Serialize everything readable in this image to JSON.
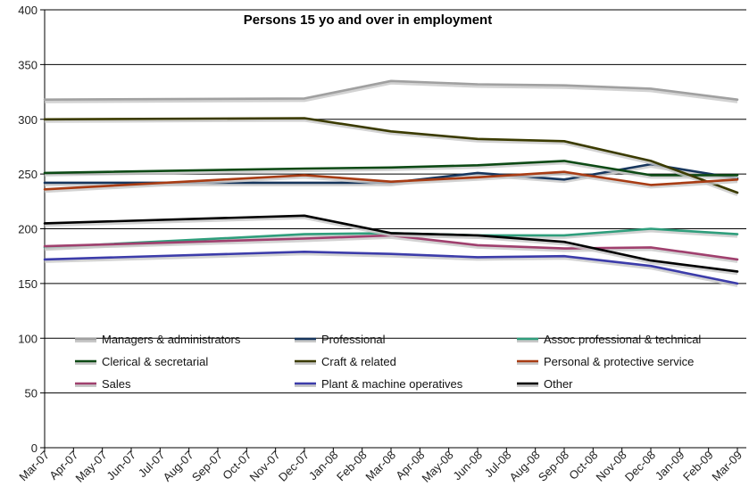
{
  "chart_data": {
    "type": "line",
    "title": "Persons 15 yo and over in employment",
    "xlabel": "",
    "ylabel": "",
    "ylim": [
      0,
      400
    ],
    "yticks": [
      0,
      50,
      100,
      150,
      200,
      250,
      300,
      350,
      400
    ],
    "grid": true,
    "legend_position": "lower-middle",
    "categories": [
      "Mar-07",
      "Apr-07",
      "May-07",
      "Jun-07",
      "Jul-07",
      "Aug-07",
      "Sep-07",
      "Oct-07",
      "Nov-07",
      "Dec-07",
      "Jan-08",
      "Feb-08",
      "Mar-08",
      "Apr-08",
      "May-08",
      "Jun-08",
      "Jul-08",
      "Aug-08",
      "Sep-08",
      "Oct-08",
      "Nov-08",
      "Dec-08",
      "Jan-09",
      "Feb-09",
      "Mar-09"
    ],
    "x": [
      "Mar-07",
      "Dec-07",
      "Mar-08",
      "Jun-08",
      "Sep-08",
      "Dec-08",
      "Mar-09"
    ],
    "series": [
      {
        "name": "Managers & administrators",
        "color": "#a0a0a0",
        "values": [
          318,
          319,
          335,
          332,
          331,
          328,
          318
        ]
      },
      {
        "name": "Professional",
        "color": "#17365d",
        "values": [
          242,
          242,
          242,
          251,
          245,
          259,
          246
        ]
      },
      {
        "name": "Assoc professional & technical",
        "color": "#2f9e7c",
        "values": [
          183,
          195,
          196,
          194,
          194,
          200,
          195
        ]
      },
      {
        "name": "Clerical & secretarial",
        "color": "#0d4a15",
        "values": [
          251,
          255,
          256,
          258,
          262,
          249,
          249
        ]
      },
      {
        "name": "Craft & related",
        "color": "#3b3b00",
        "values": [
          300,
          301,
          289,
          282,
          280,
          262,
          233
        ]
      },
      {
        "name": "Personal & protective service",
        "color": "#a83c14",
        "values": [
          236,
          249,
          243,
          247,
          252,
          240,
          245
        ]
      },
      {
        "name": "Sales",
        "color": "#a0406e",
        "values": [
          184,
          191,
          194,
          185,
          182,
          183,
          172
        ]
      },
      {
        "name": "Plant & machine operatives",
        "color": "#3c3caa",
        "values": [
          172,
          179,
          177,
          174,
          175,
          166,
          150
        ]
      },
      {
        "name": "Other",
        "color": "#000000",
        "values": [
          205,
          212,
          196,
          194,
          188,
          171,
          161
        ]
      }
    ]
  }
}
